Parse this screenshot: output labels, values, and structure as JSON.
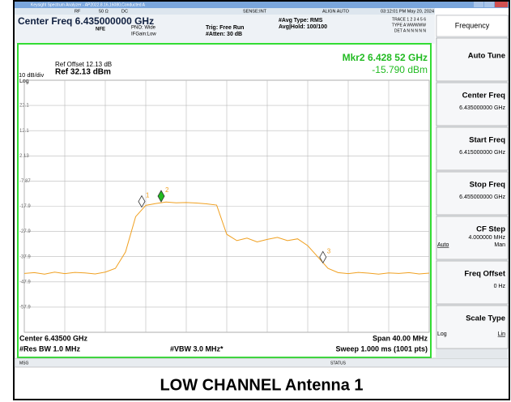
{
  "window": {
    "title": "Keysight Spectrum Analyzer - AP2022.8.16,16080,Conducted A"
  },
  "header": {
    "status": [
      "RF",
      "50 Ω",
      "DC",
      "SENSE:INT",
      "ALIGN AUTO",
      "03:12:01 PM May 20, 2024"
    ],
    "center_freq": "Center Freq 6.435000000 GHz",
    "nfe": "NFE",
    "pno": "PNO: Wide",
    "ifgain": "IFGain:Low",
    "trig": "Trig: Free Run",
    "atten": "#Atten: 30 dB",
    "avg_type": "#Avg Type: RMS",
    "avg_hold": "Avg|Hold: 100/100",
    "trace": "TRACE 1 2 3 4 5 6",
    "trace_type": "TYPE A WWWWW",
    "trace_det": "DET A N N N N N",
    "ref_offset": "Ref Offset 12.13 dB",
    "ref_level": "Ref 32.13 dBm",
    "scale": "10 dB/div",
    "scale_type": "Log",
    "marker_freq": "Mkr2 6.428 52 GHz",
    "marker_level": "-15.790 dBm"
  },
  "footer": {
    "center": "Center 6.43500 GHz",
    "rbw": "#Res BW 1.0 MHz",
    "vbw": "#VBW 3.0 MHz*",
    "span": "Span 40.00 MHz",
    "sweep": "Sweep  1.000 ms (1001 pts)",
    "msg": "MSG",
    "status": "STATUS"
  },
  "softkeys": {
    "menu": "Frequency",
    "keys": [
      {
        "label": "Auto Tune"
      },
      {
        "label": "Center Freq",
        "value": "6.435000000 GHz"
      },
      {
        "label": "Start Freq",
        "value": "6.415000000 GHz"
      },
      {
        "label": "Stop Freq",
        "value": "6.455000000 GHz"
      },
      {
        "label": "CF Step",
        "value": "4.000000 MHz",
        "left": "Auto",
        "right": "Man"
      },
      {
        "label": "Freq Offset",
        "value": "0 Hz"
      },
      {
        "label": "Scale Type",
        "left": "Log",
        "right": "Lin"
      }
    ]
  },
  "caption": "LOW CHANNEL Antenna 1",
  "chart_data": {
    "type": "line",
    "color": "#f0a020",
    "x": [
      6.415,
      6.416,
      6.417,
      6.418,
      6.419,
      6.42,
      6.421,
      6.422,
      6.423,
      6.424,
      6.425,
      6.426,
      6.427,
      6.428,
      6.429,
      6.43,
      6.431,
      6.432,
      6.433,
      6.434,
      6.435,
      6.436,
      6.437,
      6.438,
      6.439,
      6.44,
      6.441,
      6.442,
      6.443,
      6.444,
      6.445,
      6.446,
      6.447,
      6.448,
      6.449,
      6.45,
      6.451,
      6.452,
      6.453,
      6.454,
      6.455
    ],
    "values": [
      -44.5,
      -44.2,
      -44.8,
      -44.0,
      -44.6,
      -44.1,
      -44.3,
      -44.7,
      -44.0,
      -42.5,
      -36,
      -22,
      -17.5,
      -16.8,
      -16.2,
      -16.5,
      -16.4,
      -16.6,
      -16.9,
      -17.4,
      -29,
      -31.5,
      -30.5,
      -32,
      -31,
      -30.2,
      -31.5,
      -30.8,
      -33.5,
      -38,
      -42.5,
      -44.2,
      -44.6,
      -44.1,
      -44.4,
      -44.8,
      -44.3,
      -44.5,
      -44.2,
      -44.7,
      -44.4
    ],
    "xlim": [
      6.415,
      6.455
    ],
    "ylim": [
      -67.87,
      32.13
    ],
    "xticks": [
      6.415,
      6.419,
      6.423,
      6.427,
      6.431,
      6.435,
      6.439,
      6.443,
      6.447,
      6.451,
      6.455
    ],
    "yticks": [
      {
        "value": 22.13,
        "label": "22.1"
      },
      {
        "value": 12.13,
        "label": "12.1"
      },
      {
        "value": 2.13,
        "label": "2.13"
      },
      {
        "value": -7.87,
        "label": "-7.87"
      },
      {
        "value": -17.87,
        "label": "-17.9"
      },
      {
        "value": -27.87,
        "label": "-27.9"
      },
      {
        "value": -37.87,
        "label": "-37.9"
      },
      {
        "value": -47.87,
        "label": "-47.9"
      },
      {
        "value": -57.87,
        "label": "-57.9"
      }
    ],
    "grid": true,
    "markers": [
      {
        "label": "1",
        "x": 6.4266,
        "y": -17.9,
        "color": "#ffffff"
      },
      {
        "label": "2",
        "x": 6.42852,
        "y": -15.79,
        "color": "#22bb22"
      },
      {
        "label": "3",
        "x": 6.4445,
        "y": -40,
        "color": "#ffffff"
      }
    ]
  }
}
